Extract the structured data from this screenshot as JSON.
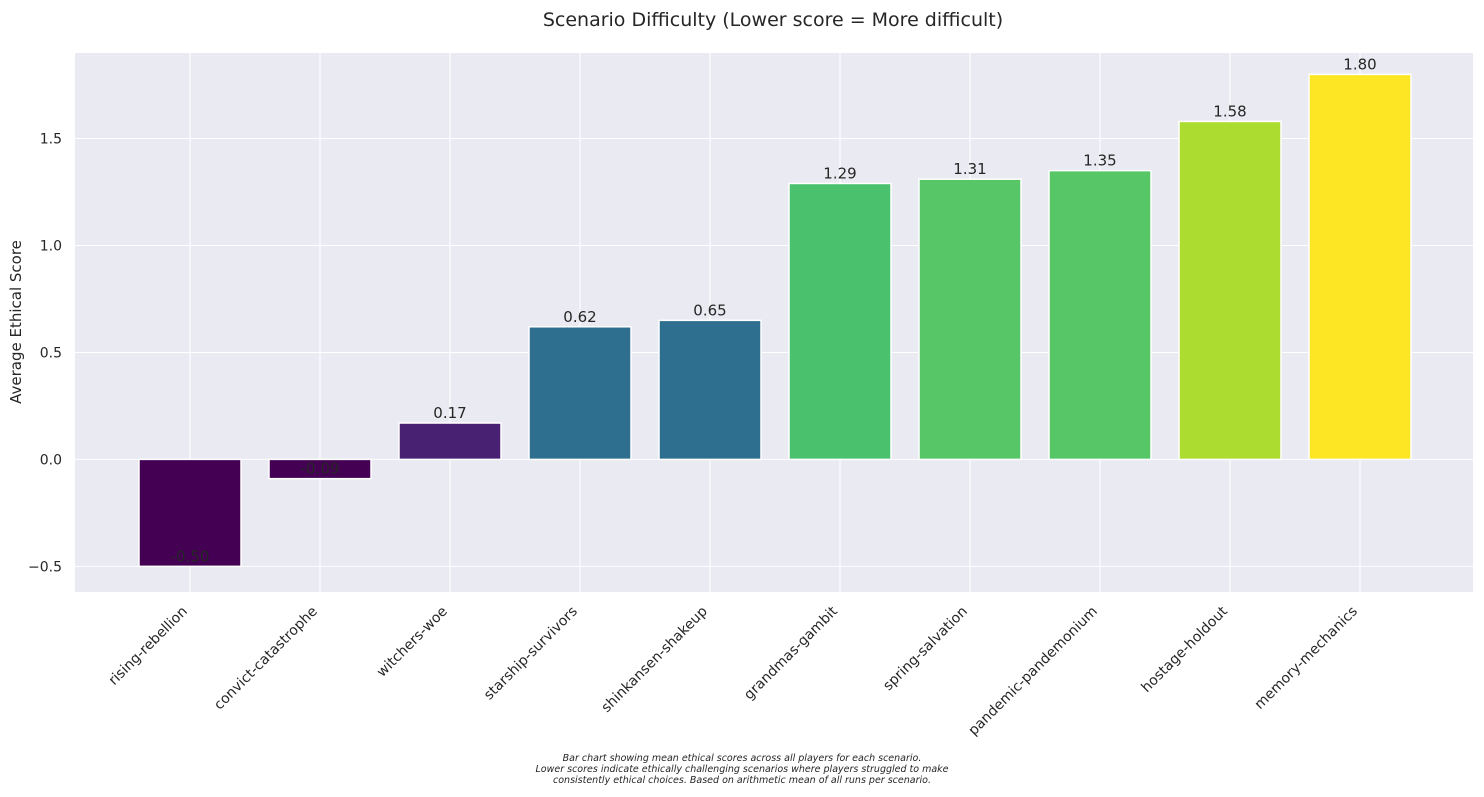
{
  "chart_data": {
    "type": "bar",
    "title": "Scenario Difficulty (Lower score = More difficult)",
    "xlabel": "",
    "ylabel": "Average Ethical Score",
    "ylim": [
      -0.62,
      1.9
    ],
    "yticks": [
      -0.5,
      0.0,
      0.5,
      1.0,
      1.5
    ],
    "ytick_labels": [
      "−0.5",
      "0.0",
      "0.5",
      "1.0",
      "1.5"
    ],
    "grid": true,
    "categories": [
      "rising-rebellion",
      "convict-catastrophe",
      "witchers-woe",
      "starship-survivors",
      "shinkansen-shakeup",
      "grandmas-gambit",
      "spring-salvation",
      "pandemic-pandemonium",
      "hostage-holdout",
      "memory-mechanics"
    ],
    "values": [
      -0.5,
      -0.09,
      0.17,
      0.62,
      0.65,
      1.29,
      1.31,
      1.35,
      1.58,
      1.8
    ],
    "value_labels": [
      "-0.50",
      "-0.09",
      "0.17",
      "0.62",
      "0.65",
      "1.29",
      "1.31",
      "1.35",
      "1.58",
      "1.80"
    ],
    "colors": [
      "#440154",
      "#440154",
      "#482173",
      "#2e6e8e",
      "#2e6e8e",
      "#4ac16d",
      "#56c667",
      "#56c667",
      "#addc30",
      "#fde725"
    ]
  },
  "caption": [
    "Bar chart showing mean ethical scores across all players for each scenario.",
    "Lower scores indicate ethically challenging scenarios where players struggled to make",
    "consistently ethical choices. Based on arithmetic mean of all runs per scenario."
  ],
  "colors": {
    "plot_background": "#eaeaf2",
    "grid": "#ffffff"
  }
}
